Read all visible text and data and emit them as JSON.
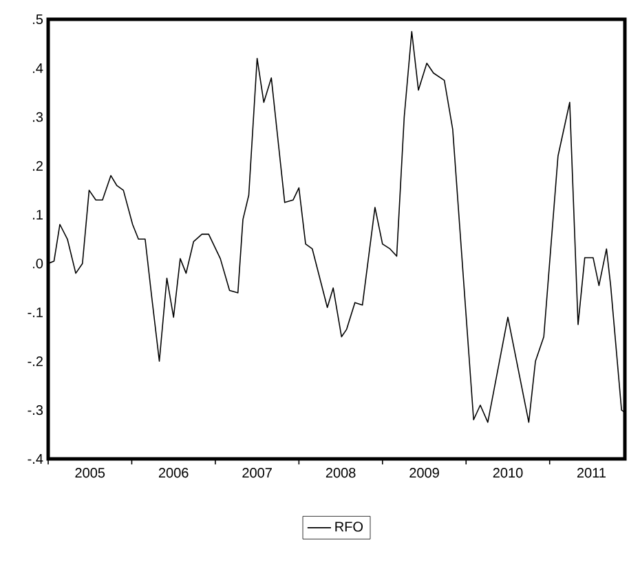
{
  "chart_data": {
    "type": "line",
    "x": [
      2005.0,
      2005.07,
      2005.14,
      2005.23,
      2005.33,
      2005.41,
      2005.49,
      2005.57,
      2005.65,
      2005.75,
      2005.82,
      2005.9,
      2006.01,
      2006.08,
      2006.16,
      2006.24,
      2006.33,
      2006.42,
      2006.5,
      2006.58,
      2006.65,
      2006.74,
      2006.84,
      2006.92,
      2007.06,
      2007.17,
      2007.27,
      2007.33,
      2007.4,
      2007.5,
      2007.58,
      2007.67,
      2007.83,
      2007.93,
      2008.0,
      2008.08,
      2008.16,
      2008.34,
      2008.41,
      2008.51,
      2008.57,
      2008.67,
      2008.76,
      2008.91,
      2009.0,
      2009.09,
      2009.17,
      2009.26,
      2009.35,
      2009.43,
      2009.53,
      2009.61,
      2009.74,
      2009.84,
      2010.09,
      2010.17,
      2010.26,
      2010.5,
      2010.75,
      2010.83,
      2010.93,
      2011.1,
      2011.24,
      2011.34,
      2011.42,
      2011.52,
      2011.59,
      2011.68,
      2011.73,
      2011.86,
      2011.9
    ],
    "series": [
      {
        "name": "RFO",
        "color": "#000000",
        "values": [
          0.0,
          0.005,
          0.08,
          0.05,
          -0.02,
          0.0,
          0.15,
          0.13,
          0.13,
          0.18,
          0.16,
          0.15,
          0.08,
          0.05,
          0.05,
          -0.07,
          -0.2,
          -0.03,
          -0.11,
          0.01,
          -0.02,
          0.045,
          0.06,
          0.06,
          0.01,
          -0.055,
          -0.06,
          0.09,
          0.14,
          0.42,
          0.33,
          0.38,
          0.125,
          0.13,
          0.155,
          0.04,
          0.03,
          -0.09,
          -0.05,
          -0.15,
          -0.135,
          -0.08,
          -0.085,
          0.115,
          0.04,
          0.03,
          0.015,
          0.3,
          0.475,
          0.355,
          0.41,
          0.39,
          0.375,
          0.275,
          -0.32,
          -0.29,
          -0.325,
          -0.11,
          -0.325,
          -0.2,
          -0.15,
          0.22,
          0.33,
          -0.125,
          0.012,
          0.012,
          -0.045,
          0.03,
          -0.045,
          -0.3,
          -0.305
        ]
      }
    ],
    "xlim": [
      2005,
      2011.9
    ],
    "xticks": [
      {
        "value": 2005,
        "label": null
      },
      {
        "value": 2005.5,
        "label": "2005"
      },
      {
        "value": 2006,
        "label": null
      },
      {
        "value": 2006.5,
        "label": "2006"
      },
      {
        "value": 2007,
        "label": null
      },
      {
        "value": 2007.5,
        "label": "2007"
      },
      {
        "value": 2008,
        "label": null
      },
      {
        "value": 2008.5,
        "label": "2008"
      },
      {
        "value": 2009,
        "label": null
      },
      {
        "value": 2009.5,
        "label": "2009"
      },
      {
        "value": 2010,
        "label": null
      },
      {
        "value": 2010.5,
        "label": "2010"
      },
      {
        "value": 2011,
        "label": null
      },
      {
        "value": 2011.5,
        "label": "2011"
      }
    ],
    "ylim": [
      -0.4,
      0.5
    ],
    "yticks": [
      {
        "value": -0.4,
        "label": "-.4"
      },
      {
        "value": -0.3,
        "label": "-.3"
      },
      {
        "value": -0.2,
        "label": "-.2"
      },
      {
        "value": -0.1,
        "label": "-.1"
      },
      {
        "value": 0.0,
        "label": ".0"
      },
      {
        "value": 0.1,
        "label": ".1"
      },
      {
        "value": 0.2,
        "label": ".2"
      },
      {
        "value": 0.3,
        "label": ".3"
      },
      {
        "value": 0.4,
        "label": ".4"
      },
      {
        "value": 0.5,
        "label": ".5"
      }
    ],
    "legend": "bottom",
    "grid": false,
    "line_style": "solid"
  }
}
